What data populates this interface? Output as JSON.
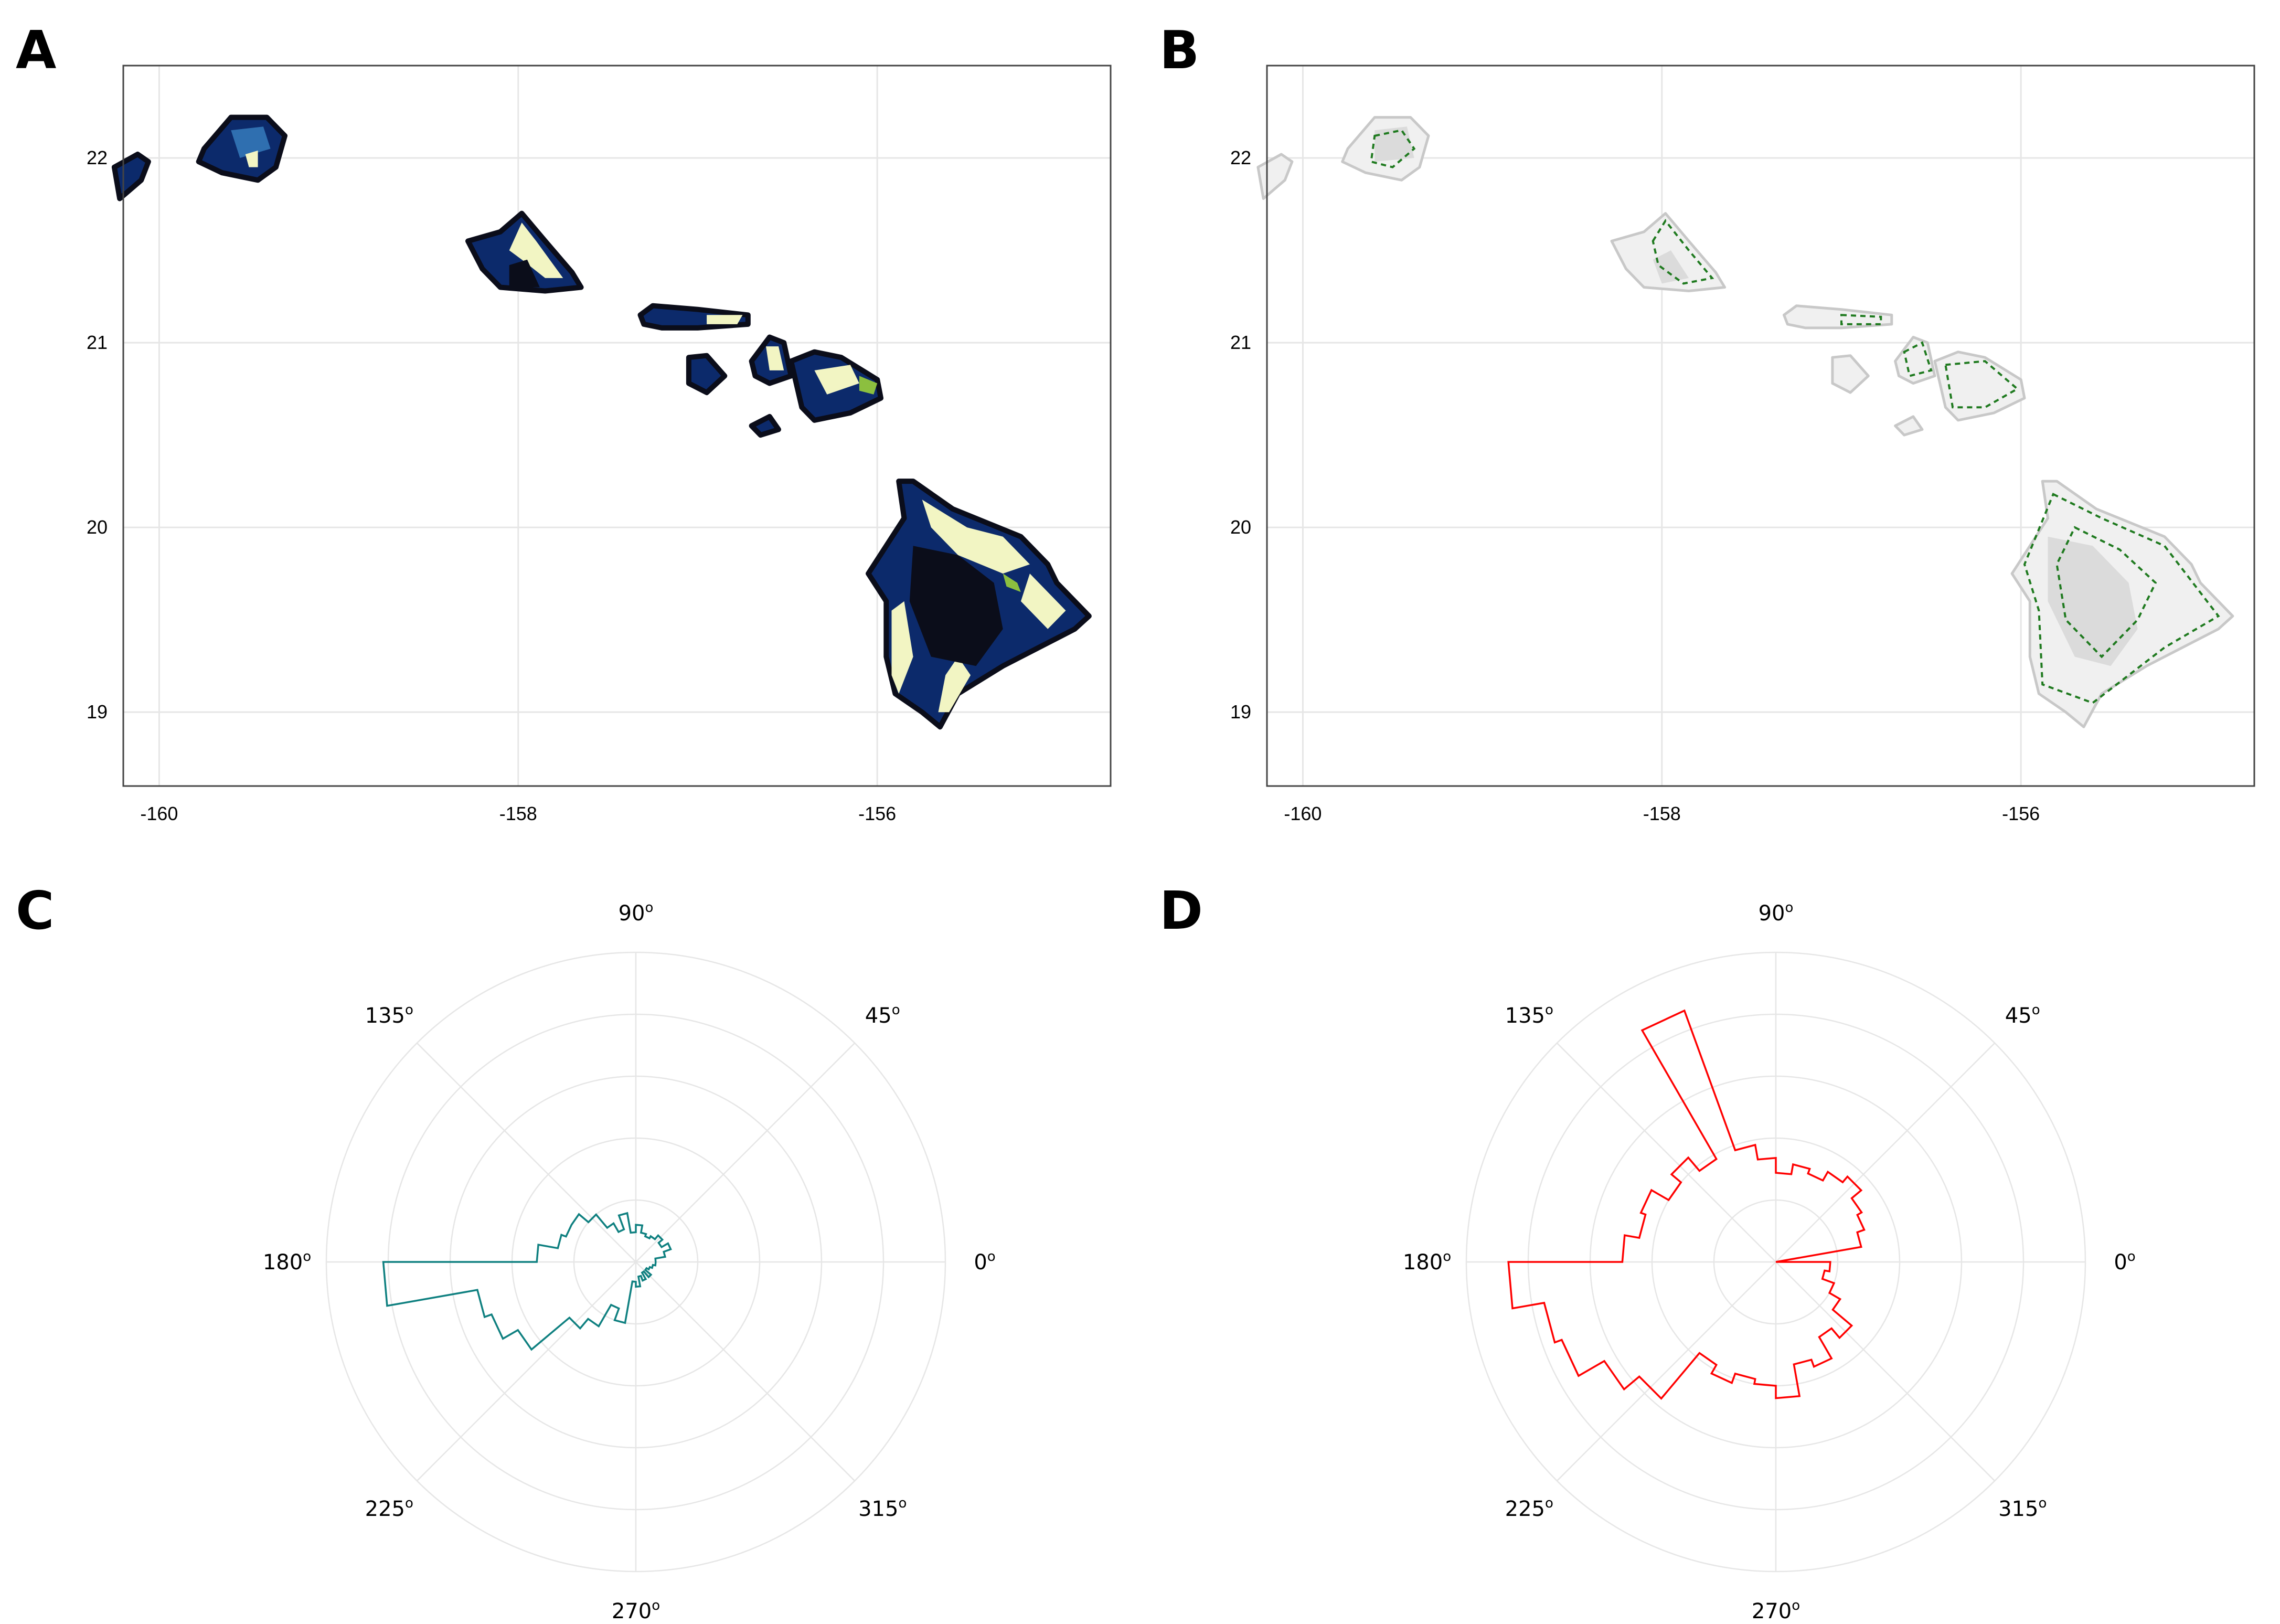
{
  "panels": {
    "A": {
      "label": "A"
    },
    "B": {
      "label": "B"
    },
    "C": {
      "label": "C"
    },
    "D": {
      "label": "D"
    }
  },
  "colors": {
    "map_dark": "#0b0d1a",
    "map_navy": "#0c2a6b",
    "map_blue": "#2f6fb0",
    "map_green": "#8cbf3f",
    "map_cream": "#f2f5c3",
    "map_gray": "#d8d8d8",
    "map_highlight_green": "#1f7a1f",
    "rose_C": "#0f8080",
    "rose_D": "#ff0000",
    "grid": "#e6e6e6",
    "frame": "#444444"
  },
  "chart_data": [
    {
      "type": "heatmap",
      "panel": "A",
      "title": "",
      "xlabel": "",
      "ylabel": "",
      "xlim": [
        -160.2,
        -154.7
      ],
      "ylim": [
        18.6,
        22.5
      ],
      "xticks": [
        "-160",
        "-158",
        "-156"
      ],
      "yticks": [
        "19",
        "20",
        "21",
        "22"
      ],
      "grid": true,
      "colormap": [
        "#0b0d1a",
        "#0c2a6b",
        "#2f6fb0",
        "#8cbf3f",
        "#f2f5c3"
      ],
      "content": "islands of Hawaii colored by a dark-to-cream scale"
    },
    {
      "type": "heatmap",
      "panel": "B",
      "title": "",
      "xlabel": "",
      "ylabel": "",
      "xlim": [
        -160.2,
        -154.7
      ],
      "ylim": [
        18.6,
        22.5
      ],
      "xticks": [
        "-160",
        "-158",
        "-156"
      ],
      "yticks": [
        "19",
        "20",
        "21",
        "22"
      ],
      "grid": true,
      "colormap": [
        "#f2f2f2",
        "#bdbdbd",
        "#1f7a1f"
      ],
      "content": "islands of Hawaii in gray with green highlighted cells"
    },
    {
      "type": "bar",
      "subtype": "polar-histogram",
      "panel": "C",
      "angle_ticks": [
        "0",
        "45",
        "90",
        "135",
        "180",
        "225",
        "270",
        "315"
      ],
      "angle_unit": "o",
      "rings": 5,
      "bin_width_deg": 10,
      "categories": [
        0,
        10,
        20,
        30,
        40,
        50,
        60,
        70,
        80,
        90,
        100,
        110,
        120,
        130,
        140,
        150,
        160,
        170,
        180,
        190,
        200,
        210,
        220,
        230,
        240,
        250,
        260,
        270,
        280,
        290,
        300,
        310,
        320,
        330,
        340,
        350
      ],
      "values": [
        0.08,
        0.12,
        0.15,
        0.12,
        0.14,
        0.12,
        0.11,
        0.12,
        0.15,
        0.12,
        0.2,
        0.14,
        0.18,
        0.25,
        0.3,
        0.3,
        0.32,
        0.4,
        1.02,
        0.65,
        0.62,
        0.55,
        0.35,
        0.3,
        0.2,
        0.25,
        0.08,
        0.1,
        0.06,
        0.08,
        0.05,
        0.08,
        0.05,
        0.06,
        0.07,
        0.08
      ],
      "rmax": 1.25,
      "grid": true
    },
    {
      "type": "bar",
      "subtype": "polar-histogram",
      "panel": "D",
      "angle_ticks": [
        "0",
        "45",
        "90",
        "135",
        "180",
        "225",
        "270",
        "315"
      ],
      "angle_unit": "o",
      "rings": 5,
      "bin_width_deg": 10,
      "categories": [
        0,
        10,
        20,
        30,
        40,
        50,
        60,
        70,
        80,
        90,
        100,
        110,
        120,
        130,
        140,
        150,
        160,
        170,
        180,
        190,
        200,
        210,
        220,
        230,
        240,
        250,
        260,
        270,
        280,
        290,
        300,
        310,
        320,
        330,
        340,
        350
      ],
      "values": [
        0.0,
        0.35,
        0.38,
        0.4,
        0.45,
        0.42,
        0.38,
        0.4,
        0.36,
        0.42,
        0.48,
        1.08,
        0.48,
        0.55,
        0.5,
        0.58,
        0.56,
        0.62,
        1.08,
        0.95,
        0.92,
        0.8,
        0.72,
        0.48,
        0.52,
        0.48,
        0.5,
        0.55,
        0.42,
        0.45,
        0.35,
        0.4,
        0.3,
        0.25,
        0.2,
        0.22
      ],
      "rmax": 1.25,
      "grid": true
    }
  ]
}
